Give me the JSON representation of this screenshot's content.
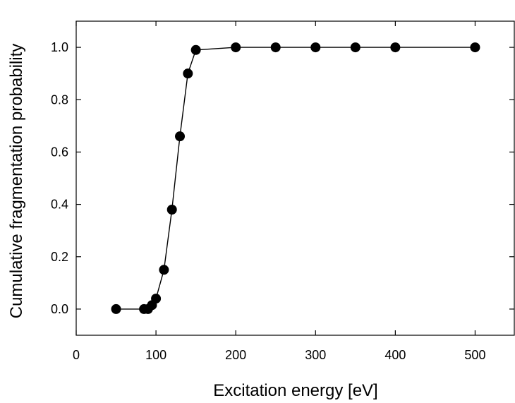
{
  "chart_data": {
    "type": "line",
    "title": "",
    "xlabel": "Excitation energy [eV]",
    "ylabel": "Cumulative fragmentation probability",
    "xlim": [
      0,
      550
    ],
    "ylim": [
      -0.1,
      1.1
    ],
    "xticks": [
      0,
      100,
      200,
      300,
      400,
      500
    ],
    "yticks": [
      0.0,
      0.2,
      0.4,
      0.6,
      0.8,
      1.0
    ],
    "xtick_labels": [
      "0",
      "100",
      "200",
      "300",
      "400",
      "500"
    ],
    "ytick_labels": [
      "0.0",
      "0.2",
      "0.4",
      "0.6",
      "0.8",
      "1.0"
    ],
    "grid": false,
    "legend": "none",
    "marker": "filled-circle",
    "line_color": "#000000",
    "series": [
      {
        "x": [
          50,
          85,
          90,
          95,
          100,
          110,
          120,
          130,
          140,
          150,
          200,
          250,
          300,
          350,
          400,
          500
        ],
        "y": [
          0.0,
          0.0,
          0.0,
          0.015,
          0.04,
          0.15,
          0.38,
          0.66,
          0.9,
          0.99,
          1.0,
          1.0,
          1.0,
          1.0,
          1.0,
          1.0
        ]
      }
    ]
  }
}
